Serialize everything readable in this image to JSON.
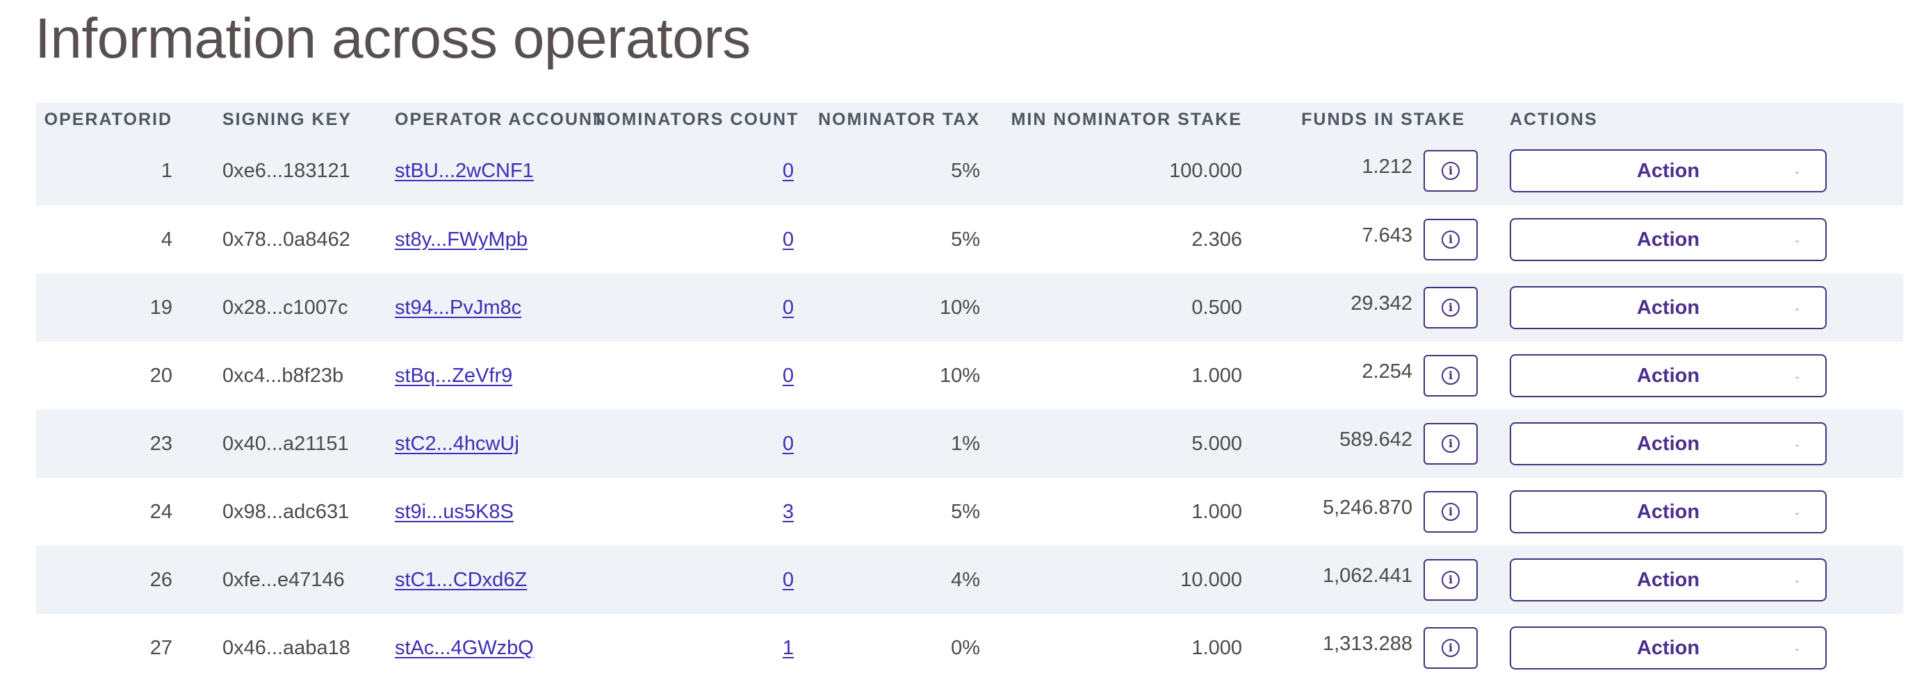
{
  "title": "Information across operators",
  "columns": {
    "operator_id": "OPERATORID",
    "signing_key": "SIGNING KEY",
    "operator_account": "OPERATOR ACCOUNT",
    "nominators_count": "NOMINATORS COUNT",
    "nominator_tax": "NOMINATOR TAX",
    "min_nominator_stake": "MIN NOMINATOR STAKE",
    "funds_in_stake": "FUNDS IN STAKE",
    "actions": "ACTIONS"
  },
  "icons": {
    "info": "info-icon",
    "chevron": "chevron-down-icon"
  },
  "colors": {
    "accent": "#45307f",
    "link": "#3b2fb5",
    "row_stripe": "#eff2f6",
    "title": "#57504f"
  },
  "rows": [
    {
      "id": "1",
      "key": "0xe6...183121",
      "account": "stBU...2wCNF1",
      "nominators": "0",
      "tax": "5%",
      "min_stake": "100.000",
      "funds": "1.212",
      "action": "Action"
    },
    {
      "id": "4",
      "key": "0x78...0a8462",
      "account": "st8y...FWyMpb",
      "nominators": "0",
      "tax": "5%",
      "min_stake": "2.306",
      "funds": "7.643",
      "action": "Action"
    },
    {
      "id": "19",
      "key": "0x28...c1007c",
      "account": "st94...PvJm8c",
      "nominators": "0",
      "tax": "10%",
      "min_stake": "0.500",
      "funds": "29.342",
      "action": "Action"
    },
    {
      "id": "20",
      "key": "0xc4...b8f23b",
      "account": "stBq...ZeVfr9",
      "nominators": "0",
      "tax": "10%",
      "min_stake": "1.000",
      "funds": "2.254",
      "action": "Action"
    },
    {
      "id": "23",
      "key": "0x40...a21151",
      "account": "stC2...4hcwUj",
      "nominators": "0",
      "tax": "1%",
      "min_stake": "5.000",
      "funds": "589.642",
      "action": "Action"
    },
    {
      "id": "24",
      "key": "0x98...adc631",
      "account": "st9i...us5K8S",
      "nominators": "3",
      "tax": "5%",
      "min_stake": "1.000",
      "funds": "5,246.870",
      "action": "Action"
    },
    {
      "id": "26",
      "key": "0xfe...e47146",
      "account": "stC1...CDxd6Z",
      "nominators": "0",
      "tax": "4%",
      "min_stake": "10.000",
      "funds": "1,062.441",
      "action": "Action"
    },
    {
      "id": "27",
      "key": "0x46...aaba18",
      "account": "stAc...4GWzbQ",
      "nominators": "1",
      "tax": "0%",
      "min_stake": "1.000",
      "funds": "1,313.288",
      "action": "Action"
    }
  ]
}
